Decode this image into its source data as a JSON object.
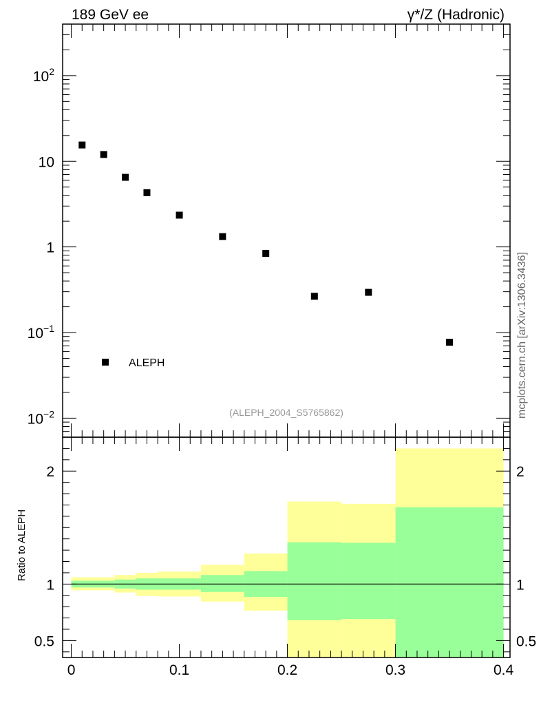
{
  "header": {
    "left_title": "189 GeV ee",
    "right_title": "γ*/Z (Hadronic)"
  },
  "side_label": "mcplots.cern.ch [arXiv:1306.3436]",
  "analysis_id": "(ALEPH_2004_S5765862)",
  "colors": {
    "band_outer": "#ffff99",
    "band_inner": "#99ff99",
    "marker": "#000000",
    "analysis_text": "#999999"
  },
  "chart_data": [
    {
      "type": "scatter",
      "panel": "main",
      "yscale": "log",
      "xlim": [
        -0.008,
        0.406
      ],
      "ylim": [
        0.006,
        400
      ],
      "ytick_values": [
        0.01,
        0.1,
        1,
        10,
        100
      ],
      "grid": false,
      "legend": {
        "position": "lower-left",
        "entries": [
          "ALEPH"
        ]
      },
      "series": [
        {
          "name": "ALEPH",
          "marker": "square",
          "x": [
            0.01,
            0.03,
            0.05,
            0.07,
            0.1,
            0.14,
            0.18,
            0.225,
            0.275,
            0.35
          ],
          "y": [
            15.5,
            12.0,
            6.5,
            4.3,
            2.35,
            1.32,
            0.84,
            0.265,
            0.295,
            0.077
          ]
        }
      ]
    },
    {
      "type": "area",
      "panel": "ratio",
      "ylabel": "Ratio to ALEPH",
      "xlim": [
        -0.008,
        0.406
      ],
      "ylim": [
        0.35,
        2.3
      ],
      "reference_line": 1,
      "xtick_labels": [
        "0",
        "0.1",
        "0.2",
        "0.3",
        "0.4"
      ],
      "ytick_labels": [
        "0.5",
        "1",
        "2"
      ],
      "bins": [
        {
          "x0": 0.0,
          "x1": 0.02,
          "inner_lo": 0.97,
          "inner_hi": 1.03,
          "outer_lo": 0.945,
          "outer_hi": 1.06
        },
        {
          "x0": 0.02,
          "x1": 0.04,
          "inner_lo": 0.97,
          "inner_hi": 1.03,
          "outer_lo": 0.945,
          "outer_hi": 1.06
        },
        {
          "x0": 0.04,
          "x1": 0.06,
          "inner_lo": 0.96,
          "inner_hi": 1.04,
          "outer_lo": 0.925,
          "outer_hi": 1.08
        },
        {
          "x0": 0.06,
          "x1": 0.08,
          "inner_lo": 0.95,
          "inner_hi": 1.05,
          "outer_lo": 0.895,
          "outer_hi": 1.1
        },
        {
          "x0": 0.08,
          "x1": 0.12,
          "inner_lo": 0.95,
          "inner_hi": 1.05,
          "outer_lo": 0.89,
          "outer_hi": 1.11
        },
        {
          "x0": 0.12,
          "x1": 0.16,
          "inner_lo": 0.93,
          "inner_hi": 1.08,
          "outer_lo": 0.845,
          "outer_hi": 1.17
        },
        {
          "x0": 0.16,
          "x1": 0.2,
          "inner_lo": 0.885,
          "inner_hi": 1.115,
          "outer_lo": 0.765,
          "outer_hi": 1.27
        },
        {
          "x0": 0.2,
          "x1": 0.25,
          "inner_lo": 0.68,
          "inner_hi": 1.37,
          "outer_lo": 0.35,
          "outer_hi": 1.73
        },
        {
          "x0": 0.25,
          "x1": 0.3,
          "inner_lo": 0.69,
          "inner_hi": 1.365,
          "outer_lo": 0.35,
          "outer_hi": 1.71
        },
        {
          "x0": 0.3,
          "x1": 0.4,
          "inner_lo": 0.35,
          "inner_hi": 1.68,
          "outer_lo": 0.35,
          "outer_hi": 2.2
        }
      ]
    }
  ]
}
